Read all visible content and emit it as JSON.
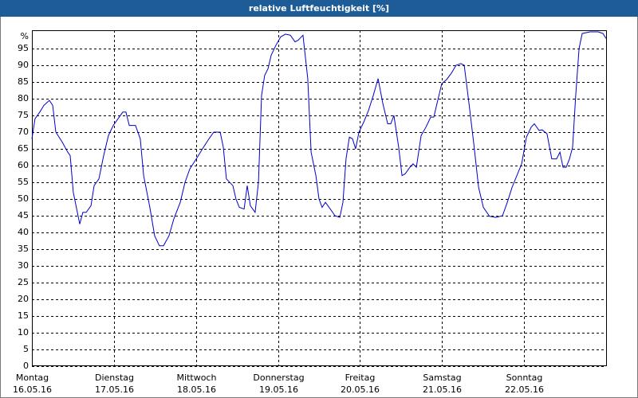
{
  "chart_data": {
    "type": "line",
    "title": "relative Luftfeuchtigkeit [%]",
    "ylabel": "%",
    "xlim": [
      0,
      168
    ],
    "ylim": [
      0,
      100
    ],
    "yticks": [
      0,
      5,
      10,
      15,
      20,
      25,
      30,
      35,
      40,
      45,
      50,
      55,
      60,
      65,
      70,
      75,
      80,
      85,
      90,
      95
    ],
    "xticks": [
      {
        "value": 0,
        "label": "Montag"
      },
      {
        "value": 24,
        "label": "Dienstag"
      },
      {
        "value": 48,
        "label": "Mittwoch"
      },
      {
        "value": 72,
        "label": "Donnerstag"
      },
      {
        "value": 96,
        "label": "Freitag"
      },
      {
        "value": 120,
        "label": "Samstag"
      },
      {
        "value": 144,
        "label": "Sonntag"
      }
    ],
    "xtick_dates": [
      "16.05.16",
      "17.05.16",
      "18.05.16",
      "19.05.16",
      "20.05.16",
      "21.05.16",
      "22.05.16"
    ],
    "grid": true,
    "series": [
      {
        "color": "#0000cc",
        "x": [
          0,
          0.9,
          2.3,
          3.5,
          5.1,
          6.1,
          7,
          8.9,
          10.5,
          11.2,
          12.1,
          14,
          14.9,
          15.9,
          17.3,
          18.2,
          19.6,
          21,
          22.4,
          23.8,
          25.2,
          26.6,
          27.5,
          28.5,
          30.3,
          31.7,
          32.7,
          34.5,
          35.9,
          37.3,
          38.5,
          40.1,
          41.5,
          43.4,
          44.8,
          46.2,
          48.1,
          49.9,
          51.8,
          53.2,
          55.1,
          56,
          56.9,
          58.8,
          59.7,
          60.7,
          62.1,
          63,
          63.9,
          65.3,
          66.3,
          67.2,
          68.1,
          69.1,
          70,
          71.4,
          72.8,
          74.2,
          75.6,
          77,
          77.9,
          79.3,
          80.7,
          81.7,
          83.1,
          84,
          84.9,
          85.9,
          87.3,
          88.7,
          90.1,
          91,
          91.9,
          92.9,
          93.8,
          94.7,
          95.7,
          97.1,
          98.5,
          99.9,
          101.3,
          102.7,
          104.1,
          105,
          105.9,
          107.3,
          108.3,
          109.2,
          110.6,
          111.5,
          112.5,
          113.9,
          115.3,
          116.7,
          117.6,
          118.5,
          119.9,
          121.3,
          122.7,
          124.1,
          125.5,
          126.5,
          127.9,
          129.3,
          130.7,
          132.1,
          133.9,
          135.8,
          137.7,
          139.1,
          140.5,
          141.9,
          143.3,
          144.7,
          146.1,
          147,
          148.4,
          149.3,
          150.7,
          152.1,
          153.5,
          154.5,
          155.4,
          156.3,
          157.3,
          158.2,
          159.1,
          160.1,
          161,
          163.3,
          165.7,
          167.1,
          168
        ],
        "values": [
          68,
          74,
          76,
          78,
          79.5,
          78,
          70,
          67,
          64,
          63,
          52,
          42.5,
          46,
          46,
          48,
          54,
          56,
          63,
          69,
          72,
          74,
          76,
          76,
          72,
          72,
          68,
          57,
          47.5,
          39,
          36,
          36,
          39,
          44,
          49,
          55,
          59,
          62,
          65,
          68,
          70,
          70,
          65.5,
          56,
          54,
          50,
          47.5,
          47,
          54,
          48,
          46,
          55,
          81,
          87,
          89,
          93,
          96,
          98.5,
          99.3,
          99,
          97,
          97.5,
          99,
          86,
          64,
          57,
          50,
          47.5,
          49,
          47,
          45,
          44.5,
          49,
          62,
          68.5,
          68,
          65,
          70,
          73,
          76.5,
          81,
          86,
          78.5,
          72.5,
          72.5,
          75,
          65.5,
          57,
          57.5,
          59.5,
          60.5,
          59.5,
          69,
          71.5,
          74.5,
          74.5,
          78.5,
          84.5,
          85.7,
          87.6,
          90,
          90.5,
          90,
          78.5,
          66.5,
          53.5,
          47.5,
          44.8,
          44.5,
          45,
          49,
          53.5,
          57,
          60.5,
          68.5,
          71.5,
          72.5,
          70.5,
          70.7,
          69.5,
          62,
          62,
          64,
          59.5,
          59.5,
          62,
          65.5,
          81,
          95,
          99.5,
          100,
          100,
          99.5,
          98
        ]
      }
    ]
  }
}
